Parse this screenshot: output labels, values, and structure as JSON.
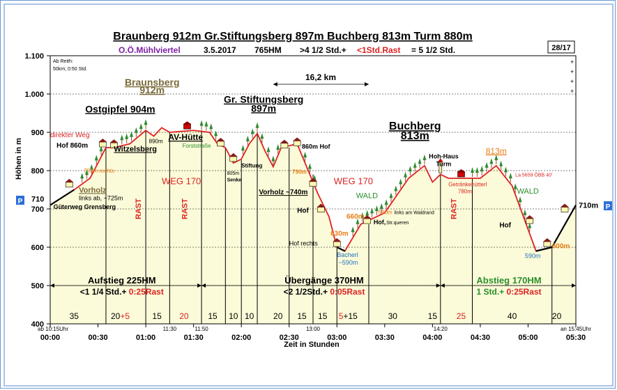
{
  "header": {
    "title": "Braunberg 912m  Gr.Stiftungsberg 897m  Buchberg 813m  Turm 880m",
    "region": "O.Ö.Mühlviertel",
    "date": "3.5.2017",
    "elevation_gain": "765HM",
    "duration_prefix": ">4 1/2 Std.+",
    "rest": "<1Std.Rast",
    "duration_total": "= 5 1/2 Std.",
    "page_number": "28/17"
  },
  "info_box": {
    "line1": "Ab Reith:",
    "line2": "50km;  0:50  Std."
  },
  "distance_label": "16,2 km",
  "colors": {
    "fill": "#fbfbd9",
    "route_line": "#e02020",
    "road_line": "#000000",
    "label_red": "#dd2222",
    "label_orange": "#e87d18",
    "label_green": "#2a8f2a",
    "label_purple": "#7b1fa2",
    "label_blue": "#1f6fbf",
    "tree": "#2e8b2e",
    "parking": "#2f6fd8"
  },
  "parking_label": "P",
  "chart_data": {
    "type": "area",
    "title": "",
    "xlabel": "Zeit in  Stunden",
    "ylabel": "Höhen in m",
    "xlim": [
      "00:00",
      "05:30"
    ],
    "ylim": [
      400,
      1100
    ],
    "y_ticks": [
      "400",
      "500",
      "600",
      "700",
      "800",
      "900",
      "1.000",
      "1.100"
    ],
    "x_ticks": [
      "00:00",
      "00:30",
      "01:00",
      "01:30",
      "02:00",
      "02:30",
      "03:00",
      "03:30",
      "04:00",
      "04:30",
      "05:00",
      "05:30"
    ],
    "grid": true,
    "profile": [
      {
        "t": 0,
        "elev": 710
      },
      {
        "t": 15,
        "elev": 750
      },
      {
        "t": 25,
        "elev": 780
      },
      {
        "t": 35,
        "elev": 860
      },
      {
        "t": 40,
        "elev": 860
      },
      {
        "t": 50,
        "elev": 870
      },
      {
        "t": 60,
        "elev": 905
      },
      {
        "t": 65,
        "elev": 890
      },
      {
        "t": 70,
        "elev": 912
      },
      {
        "t": 75,
        "elev": 900
      },
      {
        "t": 90,
        "elev": 905
      },
      {
        "t": 100,
        "elev": 900
      },
      {
        "t": 105,
        "elev": 870
      },
      {
        "t": 110,
        "elev": 860
      },
      {
        "t": 115,
        "elev": 820
      },
      {
        "t": 120,
        "elev": 830
      },
      {
        "t": 125,
        "elev": 870
      },
      {
        "t": 130,
        "elev": 897
      },
      {
        "t": 135,
        "elev": 850
      },
      {
        "t": 140,
        "elev": 810
      },
      {
        "t": 145,
        "elev": 860
      },
      {
        "t": 155,
        "elev": 870
      },
      {
        "t": 163,
        "elev": 790
      },
      {
        "t": 168,
        "elev": 740
      },
      {
        "t": 175,
        "elev": 680
      },
      {
        "t": 180,
        "elev": 600
      },
      {
        "t": 185,
        "elev": 590
      },
      {
        "t": 195,
        "elev": 660
      },
      {
        "t": 210,
        "elev": 690
      },
      {
        "t": 225,
        "elev": 780
      },
      {
        "t": 235,
        "elev": 813
      },
      {
        "t": 240,
        "elev": 770
      },
      {
        "t": 245,
        "elev": 790
      },
      {
        "t": 250,
        "elev": 780
      },
      {
        "t": 270,
        "elev": 780
      },
      {
        "t": 280,
        "elev": 813
      },
      {
        "t": 290,
        "elev": 760
      },
      {
        "t": 305,
        "elev": 590
      },
      {
        "t": 315,
        "elev": 600
      },
      {
        "t": 330,
        "elev": 710
      }
    ],
    "road_segments": [
      [
        0,
        15
      ],
      [
        180,
        185
      ],
      [
        305,
        330
      ]
    ],
    "segment_times": [
      {
        "t": 15,
        "label": "35",
        "color": "#000000"
      },
      {
        "t": 44,
        "label": "20",
        "color": "#000000",
        "suffix": "+5",
        "suffix_color": "#dd2222"
      },
      {
        "t": 67,
        "label": "15",
        "color": "#000000"
      },
      {
        "t": 84,
        "label": "20",
        "color": "#dd2222"
      },
      {
        "t": 102,
        "label": "15",
        "color": "#000000"
      },
      {
        "t": 115,
        "label": "10",
        "color": "#000000"
      },
      {
        "t": 125,
        "label": "10",
        "color": "#000000"
      },
      {
        "t": 143,
        "label": "20",
        "color": "#000000"
      },
      {
        "t": 158,
        "label": "15",
        "color": "#000000"
      },
      {
        "t": 171,
        "label": "15",
        "color": "#000000"
      },
      {
        "t": 187,
        "label": "5",
        "color": "#dd2222",
        "suffix": "+15",
        "suffix_color": "#000000"
      },
      {
        "t": 215,
        "label": "30",
        "color": "#000000"
      },
      {
        "t": 240,
        "label": "15",
        "color": "#000000"
      },
      {
        "t": 258,
        "label": "25",
        "color": "#dd2222"
      },
      {
        "t": 290,
        "label": "40",
        "color": "#000000"
      },
      {
        "t": 318,
        "label": "20",
        "color": "#000000"
      }
    ],
    "dividers": [
      35,
      60,
      75,
      95,
      110,
      120,
      130,
      150,
      165,
      180,
      200,
      245,
      265,
      315
    ],
    "bottom_times": [
      {
        "t": 0,
        "label": "ab 10:15Uhr"
      },
      {
        "t": 75,
        "label": "11:30"
      },
      {
        "t": 95,
        "label": "11:50"
      },
      {
        "t": 165,
        "label": "13:00"
      },
      {
        "t": 245,
        "label": "14:20"
      },
      {
        "t": 330,
        "label": "an 15:45Uhr"
      }
    ],
    "sections": [
      {
        "label": "Aufstieg 225HM",
        "sub": "<1 1/4 Std.+",
        "sub_red": " 0:25Rast",
        "t_center": 45,
        "t_start": 0,
        "t_end": 95,
        "color": "#000000"
      },
      {
        "label": "Übergänge 370HM",
        "sub": "<2 1/2Std.+",
        "sub_red": " 0:05Rast",
        "t_center": 172,
        "t_start": 95,
        "t_end": 245,
        "color": "#000000"
      },
      {
        "label": "Abstieg 170HM",
        "sub": "1 Std.+",
        "sub_red": " 0:25Rast",
        "t_center": 288,
        "t_start": 245,
        "t_end": 330,
        "color": "#2a8f2a"
      }
    ],
    "start_elev_label": "710",
    "end_elev_label": "710m"
  },
  "annotations": [
    {
      "text": "Braunsberg",
      "t": 64,
      "elev": 1022,
      "size": 14,
      "bold": true,
      "color": "#7a6a3a",
      "underline": true,
      "anchor": "middle"
    },
    {
      "text": "912m",
      "t": 64,
      "elev": 1002,
      "size": 14,
      "bold": true,
      "color": "#7a6a3a",
      "underline": true,
      "anchor": "middle"
    },
    {
      "text": "Ostgipfel 904m",
      "t": 22,
      "elev": 952,
      "size": 14,
      "bold": true,
      "color": "#000000",
      "underline": true,
      "anchor": "start"
    },
    {
      "text": "Gr. Stiftungsberg",
      "t": 134,
      "elev": 977,
      "size": 14,
      "bold": true,
      "color": "#000000",
      "underline": true,
      "anchor": "middle"
    },
    {
      "text": "897m",
      "t": 134,
      "elev": 954,
      "size": 14,
      "bold": true,
      "color": "#000000",
      "underline": true,
      "anchor": "middle"
    },
    {
      "text": "Buchberg",
      "t": 229,
      "elev": 907,
      "size": 16,
      "bold": true,
      "color": "#000000",
      "underline": true,
      "anchor": "middle"
    },
    {
      "text": "813m",
      "t": 229,
      "elev": 882,
      "size": 16,
      "bold": true,
      "color": "#000000",
      "underline": true,
      "anchor": "middle"
    },
    {
      "text": "813m",
      "t": 280,
      "elev": 844,
      "size": 12,
      "bold": false,
      "color": "#e87d18",
      "underline": true,
      "anchor": "middle"
    },
    {
      "text": "direkter Weg",
      "t": 0,
      "elev": 887,
      "size": 10,
      "bold": false,
      "color": "#dd2222",
      "underline": false,
      "anchor": "start"
    },
    {
      "text": "Hof 860m",
      "t": 4,
      "elev": 860,
      "size": 10,
      "bold": true,
      "color": "#000000",
      "underline": false,
      "anchor": "start"
    },
    {
      "text": "Witzelsberg",
      "t": 40,
      "elev": 850,
      "size": 11,
      "bold": true,
      "color": "#000000",
      "underline": true,
      "anchor": "start"
    },
    {
      "text": "890m",
      "t": 62,
      "elev": 872,
      "size": 8,
      "bold": false,
      "color": "#000000",
      "underline": false,
      "anchor": "start"
    },
    {
      "text": "AV-Hütte",
      "t": 85,
      "elev": 880,
      "size": 12,
      "bold": true,
      "color": "#000000",
      "underline": true,
      "anchor": "middle"
    },
    {
      "text": "Forststraße",
      "t": 83,
      "elev": 860,
      "size": 8,
      "bold": false,
      "color": "#2a8f2a",
      "underline": false,
      "anchor": "start"
    },
    {
      "text": "790m rechts",
      "t": 21,
      "elev": 795,
      "size": 8,
      "bold": false,
      "color": "#e87d18",
      "underline": false,
      "anchor": "start"
    },
    {
      "text": "Vorholz",
      "t": 18,
      "elev": 743,
      "size": 11,
      "bold": true,
      "color": "#7a6a3a",
      "underline": true,
      "anchor": "start"
    },
    {
      "text": "links ab,  ~725m",
      "t": 18,
      "elev": 723,
      "size": 9,
      "bold": false,
      "color": "#000000",
      "underline": false,
      "anchor": "start"
    },
    {
      "text": "Güterweg Grensberg",
      "t": 2,
      "elev": 700,
      "size": 9,
      "bold": true,
      "color": "#000000",
      "underline": false,
      "anchor": "start"
    },
    {
      "text": "WEG 170",
      "t": 70,
      "elev": 765,
      "size": 13,
      "bold": false,
      "color": "#dd2222",
      "underline": false,
      "anchor": "start"
    },
    {
      "text": "805m",
      "t": 111,
      "elev": 789,
      "size": 7,
      "bold": false,
      "color": "#000000",
      "underline": false,
      "anchor": "start"
    },
    {
      "text": "Senke",
      "t": 111,
      "elev": 772,
      "size": 7,
      "bold": true,
      "color": "#000000",
      "underline": false,
      "anchor": "start"
    },
    {
      "text": "Stiftung",
      "t": 120,
      "elev": 808,
      "size": 8,
      "bold": true,
      "color": "#000000",
      "underline": false,
      "anchor": "start"
    },
    {
      "text": "860m Hof",
      "t": 158,
      "elev": 857,
      "size": 9,
      "bold": true,
      "color": "#000000",
      "underline": false,
      "anchor": "start"
    },
    {
      "text": "790m",
      "t": 152,
      "elev": 792,
      "size": 8,
      "bold": true,
      "color": "#e87d18",
      "underline": false,
      "anchor": "start"
    },
    {
      "text": "Vorholz ~740m",
      "t": 131,
      "elev": 738,
      "size": 10,
      "bold": true,
      "color": "#000000",
      "underline": true,
      "anchor": "start"
    },
    {
      "text": "WEG 170",
      "t": 178,
      "elev": 765,
      "size": 13,
      "bold": false,
      "color": "#dd2222",
      "underline": false,
      "anchor": "start"
    },
    {
      "text": "WALD",
      "t": 192,
      "elev": 728,
      "size": 11,
      "bold": false,
      "color": "#2a8f2a",
      "underline": false,
      "anchor": "start"
    },
    {
      "text": "Hof",
      "t": 155,
      "elev": 690,
      "size": 10,
      "bold": true,
      "color": "#000000",
      "underline": false,
      "anchor": "start"
    },
    {
      "text": "630m",
      "t": 176,
      "elev": 630,
      "size": 10,
      "bold": true,
      "color": "#e87d18",
      "underline": false,
      "anchor": "start"
    },
    {
      "text": "Hof rechts",
      "t": 150,
      "elev": 605,
      "size": 9,
      "bold": false,
      "color": "#000000",
      "underline": false,
      "anchor": "start"
    },
    {
      "text": "660m",
      "t": 186,
      "elev": 675,
      "size": 10,
      "bold": true,
      "color": "#e87d18",
      "underline": false,
      "anchor": "start"
    },
    {
      "text": "Hof,",
      "t": 203,
      "elev": 660,
      "size": 9,
      "bold": true,
      "color": "#000000",
      "underline": false,
      "anchor": "start"
    },
    {
      "text": "Str.queren",
      "t": 211,
      "elev": 660,
      "size": 7,
      "bold": false,
      "color": "#000000",
      "underline": false,
      "anchor": "start"
    },
    {
      "text": "680m",
      "t": 206,
      "elev": 686,
      "size": 8,
      "bold": false,
      "color": "#e87d18",
      "underline": false,
      "anchor": "start"
    },
    {
      "text": "links  am  Waldrand",
      "t": 216,
      "elev": 686,
      "size": 7,
      "bold": false,
      "color": "#000000",
      "underline": false,
      "anchor": "start"
    },
    {
      "text": "Bacherl",
      "t": 180,
      "elev": 575,
      "size": 9,
      "bold": false,
      "color": "#1f6fbf",
      "underline": false,
      "anchor": "start"
    },
    {
      "text": "~590m",
      "t": 181,
      "elev": 555,
      "size": 9,
      "bold": false,
      "color": "#1f6fbf",
      "underline": false,
      "anchor": "start"
    },
    {
      "text": "Hoh-Haus",
      "t": 247,
      "elev": 832,
      "size": 9,
      "bold": true,
      "color": "#000000",
      "underline": false,
      "anchor": "middle"
    },
    {
      "text": "Turm",
      "t": 247,
      "elev": 812,
      "size": 9,
      "bold": true,
      "color": "#000000",
      "underline": false,
      "anchor": "middle"
    },
    {
      "text": "Getränkehütterl",
      "t": 250,
      "elev": 759,
      "size": 8,
      "bold": false,
      "color": "#dd2222",
      "underline": false,
      "anchor": "start"
    },
    {
      "text": "780m",
      "t": 256,
      "elev": 741,
      "size": 8,
      "bold": false,
      "color": "#dd2222",
      "underline": false,
      "anchor": "start"
    },
    {
      "text": "La 5659  ÖBB  40'",
      "t": 292,
      "elev": 785,
      "size": 7,
      "bold": false,
      "color": "#dd2222",
      "underline": false,
      "anchor": "start"
    },
    {
      "text": "WALD",
      "t": 293,
      "elev": 740,
      "size": 11,
      "bold": false,
      "color": "#2a8f2a",
      "underline": false,
      "anchor": "start"
    },
    {
      "text": "Hof",
      "t": 282,
      "elev": 652,
      "size": 10,
      "bold": true,
      "color": "#000000",
      "underline": false,
      "anchor": "start"
    },
    {
      "text": "600m",
      "t": 315,
      "elev": 597,
      "size": 10,
      "bold": true,
      "color": "#e87d18",
      "underline": false,
      "anchor": "start"
    },
    {
      "text": "590m",
      "t": 298,
      "elev": 572,
      "size": 9,
      "bold": false,
      "color": "#1f6fbf",
      "underline": false,
      "anchor": "start"
    }
  ],
  "rast_labels": [
    {
      "text": "RAST",
      "t": 57
    },
    {
      "text": "RAST",
      "t": 86
    },
    {
      "text": "RAST",
      "t": 255
    }
  ],
  "houses": [
    {
      "t": 12,
      "elev": 755,
      "kind": "house"
    },
    {
      "t": 33,
      "elev": 860,
      "kind": "house"
    },
    {
      "t": 40,
      "elev": 858,
      "kind": "house"
    },
    {
      "t": 86,
      "elev": 905,
      "kind": "hut"
    },
    {
      "t": 107,
      "elev": 862,
      "kind": "house"
    },
    {
      "t": 115,
      "elev": 822,
      "kind": "house"
    },
    {
      "t": 147,
      "elev": 857,
      "kind": "house"
    },
    {
      "t": 155,
      "elev": 863,
      "kind": "house"
    },
    {
      "t": 165,
      "elev": 757,
      "kind": "house"
    },
    {
      "t": 170,
      "elev": 690,
      "kind": "house"
    },
    {
      "t": 180,
      "elev": 600,
      "kind": "house"
    },
    {
      "t": 199,
      "elev": 660,
      "kind": "house"
    },
    {
      "t": 245,
      "elev": 790,
      "kind": "tower"
    },
    {
      "t": 258,
      "elev": 780,
      "kind": "hut"
    },
    {
      "t": 301,
      "elev": 660,
      "kind": "house"
    },
    {
      "t": 312,
      "elev": 600,
      "kind": "house"
    },
    {
      "t": 323,
      "elev": 690,
      "kind": "house"
    }
  ],
  "tree_ranges": [
    [
      20,
      32
    ],
    [
      45,
      62
    ],
    [
      95,
      104
    ],
    [
      121,
      133
    ],
    [
      137,
      143
    ],
    [
      160,
      166
    ],
    [
      190,
      235
    ],
    [
      265,
      302
    ]
  ],
  "distance_arrow": {
    "t_start": 140,
    "t_end": 200,
    "elev": 1040
  },
  "right_marks": [
    "+",
    "+",
    "+",
    "+"
  ]
}
